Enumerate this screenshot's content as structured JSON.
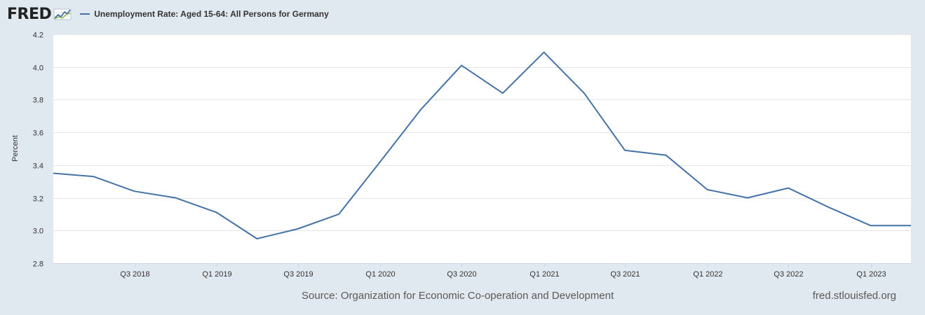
{
  "header": {
    "logo_text": "FRED",
    "logo_icon": "chart-line-icon"
  },
  "colors": {
    "background": "#e1e9f0",
    "plot_background": "#ffffff",
    "series": "#4572a7",
    "grid": "#e6e6e6"
  },
  "chart_data": {
    "type": "line",
    "title": "",
    "xlabel": "",
    "ylabel": "Percent",
    "ylim": [
      2.8,
      4.2
    ],
    "yticks": [
      "2.8",
      "3.0",
      "3.2",
      "3.4",
      "3.6",
      "3.8",
      "4.0",
      "4.2"
    ],
    "xticks": [
      {
        "label": "Q3 2018",
        "date": "2018-07-01"
      },
      {
        "label": "Q1 2019",
        "date": "2019-01-01"
      },
      {
        "label": "Q3 2019",
        "date": "2019-07-01"
      },
      {
        "label": "Q1 2020",
        "date": "2020-01-01"
      },
      {
        "label": "Q3 2020",
        "date": "2020-07-01"
      },
      {
        "label": "Q1 2021",
        "date": "2021-01-01"
      },
      {
        "label": "Q3 2021",
        "date": "2021-07-01"
      },
      {
        "label": "Q1 2022",
        "date": "2022-01-01"
      },
      {
        "label": "Q3 2022",
        "date": "2022-07-01"
      },
      {
        "label": "Q1 2023",
        "date": "2023-01-01"
      }
    ],
    "grid": true,
    "legend_position": "top-left",
    "series": [
      {
        "name": "Unemployment Rate: Aged 15-64: All Persons for Germany",
        "x": [
          "2018-01-01",
          "2018-04-01",
          "2018-07-01",
          "2018-10-01",
          "2019-01-01",
          "2019-04-01",
          "2019-07-01",
          "2019-10-01",
          "2020-01-01",
          "2020-04-01",
          "2020-07-01",
          "2020-10-01",
          "2021-01-01",
          "2021-04-01",
          "2021-07-01",
          "2021-10-01",
          "2022-01-01",
          "2022-04-01",
          "2022-07-01",
          "2022-10-01",
          "2023-01-01",
          "2023-04-01"
        ],
        "values": [
          3.35,
          3.33,
          3.24,
          3.2,
          3.11,
          2.95,
          3.01,
          3.1,
          3.42,
          3.74,
          4.01,
          3.84,
          4.09,
          3.84,
          3.49,
          3.46,
          3.25,
          3.2,
          3.26,
          3.14,
          3.03,
          3.03
        ]
      }
    ]
  },
  "footer": {
    "source": "Source: Organization for Economic Co-operation and Development",
    "site": "fred.stlouisfed.org"
  }
}
